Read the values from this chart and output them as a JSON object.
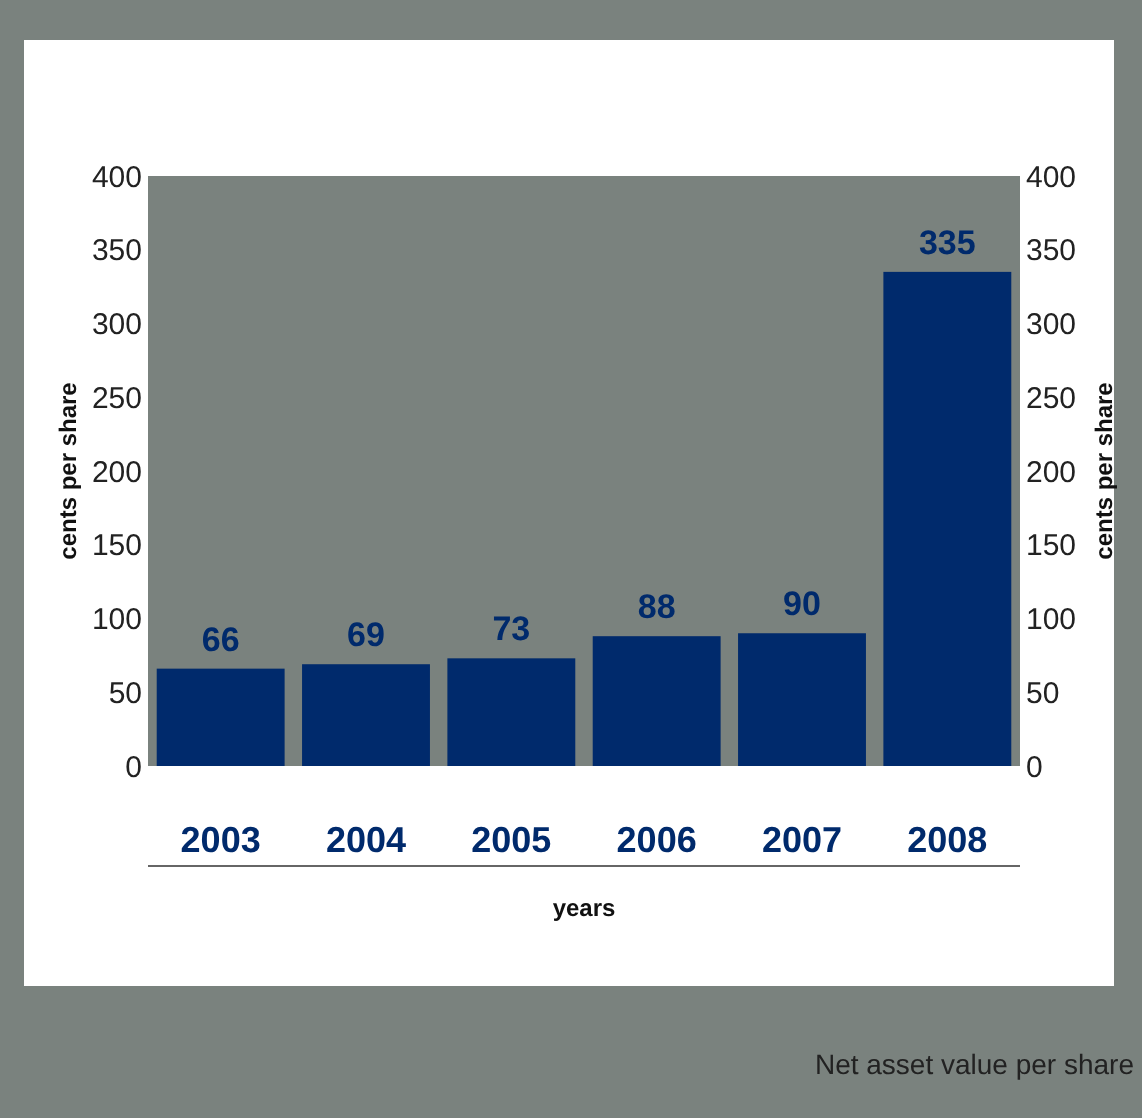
{
  "chart_data": {
    "type": "bar",
    "categories": [
      "2003",
      "2004",
      "2005",
      "2006",
      "2007",
      "2008"
    ],
    "series": [
      {
        "color": "#002a6c",
        "values": [
          66,
          69,
          73,
          88,
          90,
          335
        ]
      }
    ],
    "ylim": [
      0,
      400
    ],
    "yticks": [
      0,
      50,
      100,
      150,
      200,
      250,
      300,
      350,
      400
    ],
    "y2lim": [
      0,
      400
    ],
    "y2ticks": [
      0,
      50,
      100,
      150,
      200,
      250,
      300,
      350,
      400
    ],
    "ylabel": "cents per share",
    "y2label": "cents per share",
    "xlabel": "years",
    "data_labels": true,
    "grid": false,
    "annotations": [
      "Net asset value per share"
    ]
  }
}
